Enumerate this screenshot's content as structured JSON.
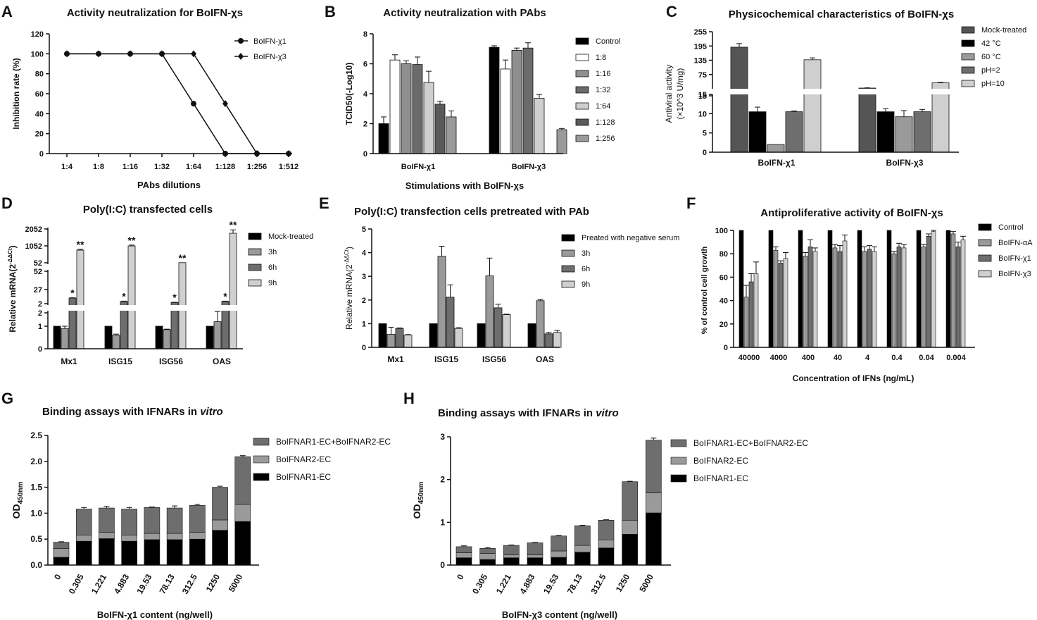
{
  "chart_data": [
    {
      "id": "A",
      "type": "line",
      "letter": "A",
      "title": "Activity neutralization for BoIFN-χs",
      "xlabel": "PAbs dilutions",
      "ylabel": "Inhibition rate (%)",
      "ylim": [
        0,
        120
      ],
      "yticks": [
        0,
        20,
        40,
        60,
        80,
        100,
        120
      ],
      "categories": [
        "1:4",
        "1:8",
        "1:16",
        "1:32",
        "1:64",
        "1:128",
        "1:256",
        "1:512"
      ],
      "series": [
        {
          "name": "BoIFN-χ1",
          "marker": "circle",
          "values": [
            100,
            100,
            100,
            100,
            50,
            0,
            0,
            0
          ]
        },
        {
          "name": "BoIFN-χ3",
          "marker": "diamond",
          "values": [
            100,
            100,
            100,
            100,
            100,
            50,
            0,
            0
          ]
        }
      ],
      "legend": "top-right"
    },
    {
      "id": "B",
      "type": "bar",
      "letter": "B",
      "title": "Activity neutralization with PAbs",
      "xlabel": "Stimulations with BoIFN-χs",
      "ylabel": "TCID50(-Log10)",
      "ylim": [
        0,
        8
      ],
      "yticks": [
        0,
        2,
        4,
        6,
        8
      ],
      "categories": [
        "BoIFN-χ1",
        "BoIFN-χ3"
      ],
      "series": [
        {
          "name": "Control",
          "color": "#000000",
          "values": [
            2.0,
            7.1
          ],
          "errors": [
            0.45,
            0.1
          ]
        },
        {
          "name": "1:8",
          "color": "#ffffff",
          "values": [
            6.25,
            5.65
          ],
          "errors": [
            0.35,
            0.6
          ]
        },
        {
          "name": "1:16",
          "color": "#8f8f8f",
          "values": [
            6.0,
            6.9
          ],
          "errors": [
            0.2,
            0.15
          ]
        },
        {
          "name": "1:32",
          "color": "#6b6b6b",
          "values": [
            5.95,
            7.05
          ],
          "errors": [
            0.5,
            0.35
          ]
        },
        {
          "name": "1:64",
          "color": "#cfcfcf",
          "values": [
            4.75,
            3.7
          ],
          "errors": [
            0.75,
            0.25
          ]
        },
        {
          "name": "1:128",
          "color": "#5a5a5a",
          "values": [
            3.3,
            0
          ],
          "errors": [
            0.2,
            0
          ]
        },
        {
          "name": "1:256",
          "color": "#9a9a9a",
          "values": [
            2.45,
            1.6
          ],
          "errors": [
            0.4,
            0.08
          ]
        }
      ],
      "legend": "right"
    },
    {
      "id": "C",
      "type": "bar",
      "letter": "C",
      "title": "Physicochemical characteristics of BoIFN-χs",
      "xlabel": "",
      "ylabel": "Antiviral activity",
      "ylabel2": "(×10^3 U/mg)",
      "axis_break": {
        "lower": [
          0,
          15
        ],
        "upper": [
          15,
          255
        ]
      },
      "yticks_lower": [
        0,
        5,
        10,
        15
      ],
      "yticks_upper": [
        15,
        75,
        135,
        195,
        255
      ],
      "categories": [
        "BoIFN-χ1",
        "BoIFN-χ3"
      ],
      "series": [
        {
          "name": "Mock-treated",
          "color": "#555555",
          "values": [
            190,
            18
          ],
          "errors": [
            15,
            1
          ]
        },
        {
          "name": "42 °C",
          "color": "#000000",
          "values": [
            10.5,
            10.5
          ],
          "errors": [
            1.2,
            0.8
          ]
        },
        {
          "name": "60 °C",
          "color": "#9a9a9a",
          "values": [
            2,
            9.2
          ],
          "errors": [
            0,
            1.6
          ]
        },
        {
          "name": "pH=2",
          "color": "#6e6e6e",
          "values": [
            10.5,
            10.5
          ],
          "errors": [
            0.2,
            0.6
          ]
        },
        {
          "name": "pH=10",
          "color": "#cfcfcf",
          "values": [
            137,
            40
          ],
          "errors": [
            8,
            2
          ]
        }
      ],
      "legend": "top-right"
    },
    {
      "id": "D",
      "type": "bar",
      "letter": "D",
      "title": "Poly(I:C) transfected cells",
      "xlabel": "",
      "ylabel": "Relative mRNA(2",
      "ylabel_sup": "-ΔΔCt",
      "ylabel_end": ")",
      "axis_break": {
        "lower": [
          0,
          2
        ],
        "upper": [
          2,
          2052
        ]
      },
      "yticks_lower": [
        0,
        1,
        2
      ],
      "yticks_upper": [
        "2",
        "27",
        "52",
        "52",
        "1052",
        "2052"
      ],
      "categories": [
        "Mx1",
        "ISG15",
        "ISG56",
        "OAS"
      ],
      "series": [
        {
          "name": "Mock-treated",
          "color": "#000000",
          "values": [
            1,
            1,
            1,
            1
          ],
          "errors": [
            0,
            0,
            0,
            0
          ]
        },
        {
          "name": "3h",
          "color": "#9a9a9a",
          "values": [
            0.9,
            0.6,
            0.85,
            1.2
          ],
          "errors": [
            0.1,
            0.05,
            0.02,
            0.45
          ]
        },
        {
          "name": "6h",
          "color": "#6e6e6e",
          "values": [
            12,
            6,
            4,
            6
          ],
          "errors": [
            0.5,
            0.5,
            0.5,
            0.5
          ]
        },
        {
          "name": "9h",
          "color": "#d0d0d0",
          "values": [
            800,
            1050,
            60,
            1800
          ],
          "errors": [
            50,
            50,
            0,
            200
          ]
        }
      ],
      "annotations": [
        "*",
        "**",
        "*",
        "**",
        "*",
        "**",
        "*",
        "**"
      ],
      "legend": "top-right"
    },
    {
      "id": "E",
      "type": "bar",
      "letter": "E",
      "title": "Poly(I:C) transfection cells pretreated with PAb",
      "xlabel": "",
      "ylabel": "Relative mRNA(2",
      "ylabel_sup": "-ΔΔCt",
      "ylabel_end": ")",
      "ylim": [
        0,
        5
      ],
      "yticks": [
        0,
        1,
        2,
        3,
        4,
        5
      ],
      "categories": [
        "Mx1",
        "ISG15",
        "ISG56",
        "OAS"
      ],
      "series": [
        {
          "name": "Preated with negative serum",
          "color": "#000000",
          "values": [
            1.0,
            1.0,
            1.0,
            1.0
          ],
          "errors": [
            0,
            0,
            0,
            0
          ]
        },
        {
          "name": "3h",
          "color": "#9a9a9a",
          "values": [
            0.55,
            3.85,
            3.02,
            1.97
          ],
          "errors": [
            0.3,
            0.42,
            0.75,
            0.05
          ]
        },
        {
          "name": "6h",
          "color": "#6e6e6e",
          "values": [
            0.8,
            2.12,
            1.67,
            0.57
          ],
          "errors": [
            0.02,
            0.52,
            0.15,
            0.06
          ]
        },
        {
          "name": "9h",
          "color": "#d0d0d0",
          "values": [
            0.52,
            0.8,
            1.38,
            0.63
          ],
          "errors": [
            0.02,
            0.03,
            0.02,
            0.08
          ]
        }
      ],
      "legend": "top-right"
    },
    {
      "id": "F",
      "type": "bar",
      "letter": "F",
      "title": "Antiproliferative activity of BoIFN-χs",
      "xlabel": "Concentration of IFNs  (ng/mL)",
      "ylabel": "% of control cell growth",
      "ylim": [
        0,
        100
      ],
      "yticks": [
        0,
        20,
        40,
        60,
        80,
        100
      ],
      "categories": [
        "40000",
        "4000",
        "400",
        "40",
        "4",
        "0.4",
        "0.04",
        "0.004"
      ],
      "series": [
        {
          "name": "Control",
          "color": "#000000",
          "values": [
            100,
            100,
            100,
            100,
            100,
            100,
            100,
            100
          ],
          "errors": [
            0,
            0,
            0,
            0,
            0,
            0,
            0,
            0
          ]
        },
        {
          "name": "BoIFN-αA",
          "color": "#9a9a9a",
          "values": [
            43,
            83,
            78,
            85,
            82,
            80,
            86,
            97
          ],
          "errors": [
            10,
            3,
            3,
            3,
            4,
            2,
            2,
            2
          ]
        },
        {
          "name": "BoIFN-χ1",
          "color": "#6e6e6e",
          "values": [
            56,
            72,
            86,
            82,
            84,
            86,
            95,
            86
          ],
          "errors": [
            7,
            2,
            6,
            5,
            3,
            3,
            2,
            4
          ]
        },
        {
          "name": "BoIFN-χ3",
          "color": "#d0d0d0",
          "values": [
            63,
            76,
            82,
            91,
            82,
            85,
            99,
            92
          ],
          "errors": [
            10,
            5,
            3,
            5,
            4,
            3,
            1,
            3
          ]
        }
      ],
      "legend": "top-right"
    },
    {
      "id": "G",
      "type": "bar",
      "letter": "G",
      "title_pre": "Binding assays with IFNARs in ",
      "title_it": "vitro",
      "xlabel": "BoIFN-χ1 content (ng/well)",
      "ylabel": "OD",
      "ylabel_sub": "450nm",
      "ylim": [
        0,
        2.5
      ],
      "yticks": [
        "0.0",
        "0.5",
        "1.0",
        "1.5",
        "2.0",
        "2.5"
      ],
      "categories": [
        "0",
        "0.305",
        "1.221",
        "4.883",
        "19.53",
        "78.13",
        "312.5",
        "1250",
        "5000"
      ],
      "series": [
        {
          "name": "BoIFNAR1-EC",
          "color": "#000000",
          "values": [
            0.15,
            0.46,
            0.51,
            0.46,
            0.49,
            0.49,
            0.5,
            0.67,
            0.84
          ],
          "errors": [
            0.03,
            0.03,
            0.03,
            0.03,
            0.03,
            0.03,
            0.03,
            0.03,
            0.02
          ]
        },
        {
          "name": "BoIFNAR2-EC",
          "color": "#9a9a9a",
          "values": [
            0.17,
            0.12,
            0.12,
            0.12,
            0.12,
            0.12,
            0.13,
            0.2,
            0.33
          ],
          "errors": [
            0.04,
            0.02,
            0.02,
            0.02,
            0.02,
            0.02,
            0.02,
            0.02,
            0.02
          ]
        },
        {
          "name": "BoIFNAR1-EC+BoIFNAR2-EC",
          "color": "#6e6e6e",
          "values": [
            0.12,
            0.5,
            0.47,
            0.5,
            0.5,
            0.49,
            0.52,
            0.63,
            0.92
          ],
          "errors": [
            0.01,
            0.03,
            0.03,
            0.03,
            0.01,
            0.04,
            0.02,
            0.02,
            0.02
          ]
        }
      ],
      "legend": "top-left"
    },
    {
      "id": "H",
      "type": "bar",
      "letter": "H",
      "title_pre": "Binding assays with IFNARs in ",
      "title_it": "vitro",
      "xlabel": "BoIFN-χ3 content (ng/well)",
      "ylabel": "OD",
      "ylabel_sub": "450nm",
      "ylim": [
        0,
        3
      ],
      "yticks": [
        "0",
        "1",
        "2",
        "3"
      ],
      "categories": [
        "0",
        "0.305",
        "1.221",
        "4.883",
        "19.53",
        "78.13",
        "312.5",
        "1250",
        "5000"
      ],
      "series": [
        {
          "name": "BoIFNAR1-EC",
          "color": "#000000",
          "values": [
            0.17,
            0.13,
            0.17,
            0.17,
            0.18,
            0.3,
            0.4,
            0.72,
            1.22
          ],
          "errors": [
            0.03,
            0.03,
            0.02,
            0.02,
            0.03,
            0.02,
            0.02,
            0.03,
            0.04
          ]
        },
        {
          "name": "BoIFNAR2-EC",
          "color": "#9a9a9a",
          "values": [
            0.12,
            0.14,
            0.07,
            0.07,
            0.15,
            0.16,
            0.19,
            0.33,
            0.47
          ],
          "errors": [
            0.03,
            0.04,
            0.02,
            0.02,
            0.03,
            0.02,
            0.02,
            0.02,
            0.04
          ]
        },
        {
          "name": "BoIFNAR1-EC+BoIFNAR2-EC",
          "color": "#6e6e6e",
          "values": [
            0.14,
            0.12,
            0.22,
            0.28,
            0.35,
            0.46,
            0.46,
            0.9,
            1.23
          ],
          "errors": [
            0.02,
            0.02,
            0.01,
            0.01,
            0.01,
            0.01,
            0.01,
            0.01,
            0.05
          ]
        }
      ],
      "legend": "top-left"
    }
  ]
}
